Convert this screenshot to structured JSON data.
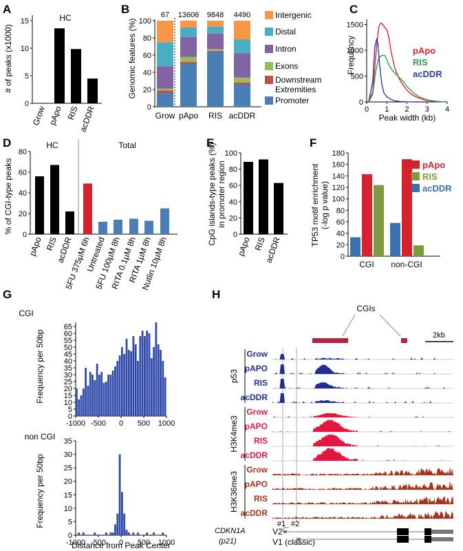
{
  "panels": {
    "A": {
      "letter": "A",
      "title": "HC",
      "ylabel": "# of peaks (x1000)"
    },
    "B": {
      "letter": "B",
      "ylabel": "Genomic features (%)"
    },
    "C": {
      "letter": "C",
      "ylabel": "Frequency",
      "xlabel": "Peak width (kb)"
    },
    "D": {
      "letter": "D",
      "ylabel": "% of CGI-type peaks",
      "group_hc": "HC",
      "group_total": "Total"
    },
    "E": {
      "letter": "E",
      "ylabel": "CpG islands-type peaks (%) in promoter region"
    },
    "F": {
      "letter": "F",
      "ylabel": "TP53 motif enrichment (-log p value)"
    },
    "G": {
      "letter": "G",
      "top_title": "CGI",
      "bottom_title": "non CGI",
      "ylabel": "Frequency per 50bp",
      "xlabel": "Distance from Peak Center"
    },
    "H": {
      "letter": "H",
      "cgis_label": "CGIs",
      "scale_label": "2kb",
      "groups": [
        "p53",
        "H3K4me3",
        "H3K36me3"
      ],
      "tracks": [
        {
          "group": "p53",
          "label": "Grow",
          "color": "#1f2f96"
        },
        {
          "group": "p53",
          "label": "pAPO",
          "color": "#1f2f96"
        },
        {
          "group": "p53",
          "label": "RIS",
          "color": "#1f2f96"
        },
        {
          "group": "p53",
          "label": "acDDR",
          "color": "#1f2f96"
        },
        {
          "group": "H3K4me3",
          "label": "Grow",
          "color": "#e5173f"
        },
        {
          "group": "H3K4me3",
          "label": "pAPO",
          "color": "#e5173f"
        },
        {
          "group": "H3K4me3",
          "label": "RIS",
          "color": "#e5173f"
        },
        {
          "group": "H3K4me3",
          "label": "acDDR",
          "color": "#e5173f"
        },
        {
          "group": "H3K36me3",
          "label": "Grow",
          "color": "#a6341b"
        },
        {
          "group": "H3K36me3",
          "label": "pAPO",
          "color": "#a6341b"
        },
        {
          "group": "H3K36me3",
          "label": "RIS",
          "color": "#a6341b"
        },
        {
          "group": "H3K36me3",
          "label": "acDDR",
          "color": "#a6341b"
        }
      ],
      "gene": "CDKN1A",
      "gene_alias": "(p21)",
      "tss1": "#1",
      "tss2": "#2",
      "v2": "V2",
      "v1": "V1 (classic)"
    }
  },
  "chart_data": [
    {
      "id": "A",
      "type": "bar",
      "title": "HC",
      "ylabel": "# of peaks (x1000)",
      "categories": [
        "Grow",
        "pApo",
        "RIS",
        "acDDR"
      ],
      "values": [
        0.067,
        13.606,
        9.848,
        4.49
      ],
      "ylim": [
        0,
        16
      ],
      "color": "#000000"
    },
    {
      "id": "B",
      "type": "bar",
      "ylabel": "Genomic features (%)",
      "categories": [
        "Grow",
        "pApo",
        "RIS",
        "acDDR"
      ],
      "top_labels": [
        "67",
        "13606",
        "9848",
        "4490"
      ],
      "yticks": [
        0,
        20,
        40,
        60,
        80,
        100
      ],
      "ylim": [
        0,
        100
      ],
      "series": [
        {
          "name": "Promoter",
          "color": "#4a7fb5",
          "values": [
            16,
            50,
            64,
            26
          ]
        },
        {
          "name": "Downstream Extremities",
          "color": "#c0504d",
          "values": [
            3,
            2,
            1,
            2
          ]
        },
        {
          "name": "Exons",
          "color": "#9bbb59",
          "values": [
            2,
            6,
            2,
            6
          ]
        },
        {
          "name": "Intron",
          "color": "#8064a2",
          "values": [
            26,
            23,
            18,
            28
          ]
        },
        {
          "name": "Distal",
          "color": "#4bacc6",
          "values": [
            28,
            11,
            8,
            16
          ]
        },
        {
          "name": "Intergenic",
          "color": "#f79646",
          "values": [
            25,
            8,
            7,
            22
          ]
        }
      ]
    },
    {
      "id": "C",
      "type": "line",
      "xlabel": "Peak width (kb)",
      "ylabel": "Frequency",
      "xticks": [
        0,
        1,
        2,
        3,
        4
      ],
      "yticks": [
        0,
        500,
        1000,
        1500
      ],
      "xlim": [
        0,
        4
      ],
      "ylim": [
        0,
        1600
      ],
      "series": [
        {
          "name": "pApo",
          "color": "#e5232b",
          "x": [
            0.1,
            0.3,
            0.45,
            0.6,
            0.7,
            0.8,
            0.9,
            1.0,
            1.1,
            1.2,
            1.4,
            1.6,
            1.8,
            2.0,
            2.2,
            2.5,
            2.8,
            3.0,
            3.3,
            3.6,
            4.0
          ],
          "y": [
            0,
            200,
            900,
            1450,
            1530,
            1500,
            1440,
            1400,
            1250,
            1000,
            650,
            460,
            330,
            230,
            150,
            90,
            50,
            30,
            15,
            8,
            0
          ]
        },
        {
          "name": "RIS",
          "color": "#2ea04a",
          "x": [
            0.1,
            0.3,
            0.45,
            0.6,
            0.75,
            0.9,
            1.0,
            1.1,
            1.3,
            1.5,
            1.8,
            2.0,
            2.3,
            2.6,
            3.0,
            3.5,
            4.0
          ],
          "y": [
            0,
            150,
            600,
            850,
            900,
            900,
            820,
            720,
            600,
            520,
            400,
            300,
            180,
            100,
            40,
            10,
            0
          ]
        },
        {
          "name": "acDDR",
          "color": "#2b3f9c",
          "x": [
            0.1,
            0.3,
            0.4,
            0.5,
            0.55,
            0.65,
            0.75,
            0.85,
            1.0,
            1.2,
            1.4,
            1.7,
            2.0,
            2.5,
            3.0
          ],
          "y": [
            0,
            400,
            1050,
            1230,
            1150,
            700,
            350,
            180,
            100,
            50,
            20,
            8,
            3,
            0,
            0
          ]
        }
      ]
    },
    {
      "id": "D",
      "type": "bar",
      "ylabel": "% of CGI-type peaks",
      "categories": [
        "pApo",
        "RIS",
        "acDDR",
        "5FU 375µM 6h",
        "Untreated",
        "5FU 100µM 8h",
        "RITA 0.1µM 8h",
        "RITA 1µM 8h",
        "Nutlin 10µM 8h"
      ],
      "values": [
        56,
        67,
        22,
        49,
        12,
        14,
        15,
        13,
        25
      ],
      "colors": [
        "#000000",
        "#000000",
        "#000000",
        "#d5222c",
        "#4a7fb5",
        "#4a7fb5",
        "#4a7fb5",
        "#4a7fb5",
        "#4a7fb5"
      ],
      "yticks": [
        0,
        20,
        40,
        60,
        80
      ],
      "ylim": [
        0,
        80
      ]
    },
    {
      "id": "E",
      "type": "bar",
      "ylabel": "CpG islands-type peaks (%) in promoter region",
      "categories": [
        "pApo",
        "RIS",
        "acDDR"
      ],
      "values": [
        89,
        92,
        63
      ],
      "yticks": [
        0,
        20,
        40,
        60,
        80,
        100
      ],
      "ylim": [
        0,
        100
      ],
      "color": "#000000"
    },
    {
      "id": "F",
      "type": "bar",
      "ylabel": "TP53 motif enrichment (-log p value)",
      "categories": [
        "CGI",
        "non-CGI"
      ],
      "yticks": [
        0,
        20,
        40,
        60,
        80,
        100,
        120,
        140,
        160,
        180
      ],
      "ylim": [
        0,
        180
      ],
      "series": [
        {
          "name": "acDDR",
          "color": "#3a71b0",
          "values": [
            33,
            58
          ]
        },
        {
          "name": "pApo",
          "color": "#d5222c",
          "values": [
            143,
            169
          ]
        },
        {
          "name": "RIS",
          "color": "#7f9a3a",
          "values": [
            124,
            19
          ]
        }
      ],
      "legend_order": [
        "pApo",
        "RIS",
        "acDDR"
      ]
    },
    {
      "id": "G_CGI",
      "type": "bar",
      "title": "CGI",
      "ylabel": "Frequency per 50bp",
      "xticks": [
        -1000,
        -500,
        0,
        500,
        1000
      ],
      "yticks": [
        0,
        5,
        10,
        15,
        20,
        25,
        30,
        35,
        40,
        45,
        50,
        55,
        60,
        65
      ],
      "xlim": [
        -1000,
        1000
      ],
      "ylim": [
        0,
        68
      ],
      "bin_width": 50,
      "color": "#2f4aa8",
      "bins_start": -1000,
      "values": [
        20,
        12,
        15,
        20,
        35,
        22,
        32,
        30,
        26,
        38,
        30,
        32,
        24,
        25,
        30,
        30,
        33,
        36,
        40,
        44,
        50,
        45,
        56,
        48,
        47,
        58,
        52,
        40,
        58,
        62,
        58,
        62,
        60,
        42,
        50,
        68,
        52,
        48,
        40,
        28
      ]
    },
    {
      "id": "G_nonCGI",
      "type": "bar",
      "title": "non CGI",
      "xlabel": "Distance from Peak Center",
      "ylabel": "Frequency per 50bp",
      "xticks": [
        -1000,
        -500,
        0,
        500,
        1000
      ],
      "yticks": [
        0,
        5,
        10,
        15,
        20,
        25,
        30,
        35
      ],
      "xlim": [
        -1000,
        1000
      ],
      "ylim": [
        0,
        35
      ],
      "bin_width": 50,
      "color": "#2f4aa8",
      "bins_start": -1000,
      "values": [
        0,
        1,
        0,
        1,
        0,
        0,
        0,
        0,
        1,
        0,
        0,
        0,
        0,
        1,
        0,
        1,
        1,
        4,
        8,
        30,
        16,
        8,
        2,
        1,
        0,
        1,
        0,
        1,
        0,
        0,
        0,
        1,
        0,
        0,
        1,
        0,
        0,
        0,
        1,
        0
      ]
    }
  ]
}
